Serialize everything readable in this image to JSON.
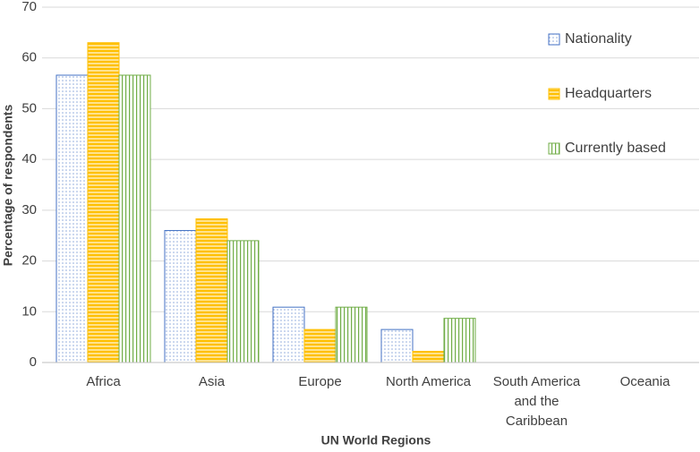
{
  "chart_data": {
    "type": "bar",
    "xlabel": "UN World Regions",
    "ylabel": "Percentage of respondents",
    "categories": [
      "Africa",
      "Asia",
      "Europe",
      "North America",
      "South America and the Caribbean",
      "Oceania"
    ],
    "series": [
      {
        "name": "Nationality",
        "color": "#4472c4",
        "pattern": "dots",
        "values": [
          56.6,
          26,
          10.9,
          6.5,
          0,
          0
        ]
      },
      {
        "name": "Headquarters",
        "color": "#ffc000",
        "pattern": "horizontal",
        "values": [
          63,
          28.3,
          6.5,
          2.2,
          0,
          0
        ]
      },
      {
        "name": "Currently based",
        "color": "#70ad47",
        "pattern": "vertical",
        "values": [
          56.6,
          24,
          10.9,
          8.7,
          0,
          0
        ]
      }
    ],
    "ylim": [
      0,
      70
    ],
    "yticks": [
      0,
      10,
      20,
      30,
      40,
      50,
      60,
      70
    ],
    "grid": true,
    "legend": "upper right"
  }
}
